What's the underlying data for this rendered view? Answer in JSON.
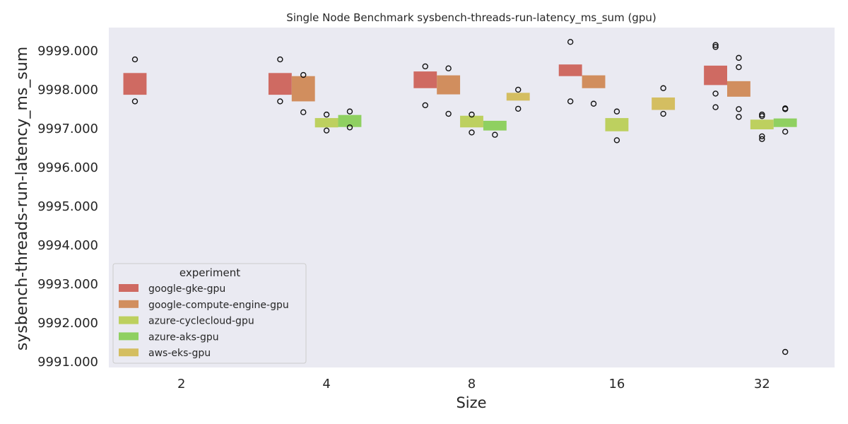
{
  "chart_data": {
    "type": "box",
    "title": "Single Node Benchmark sysbench-threads-run-latency_ms_sum (gpu)",
    "xlabel": "Size",
    "ylabel": "sysbench-threads-run-latency_ms_sum",
    "categories": [
      "2",
      "4",
      "8",
      "16",
      "32"
    ],
    "ylim": [
      9990.85,
      9999.6
    ],
    "yticks": [
      9991,
      9992,
      9993,
      9994,
      9995,
      9996,
      9997,
      9998,
      9999
    ],
    "ytick_labels": [
      "9991.000",
      "9992.000",
      "9993.000",
      "9994.000",
      "9995.000",
      "9996.000",
      "9997.000",
      "9998.000",
      "9999.000"
    ],
    "grid": false,
    "legend": {
      "title": "experiment",
      "position": "lower-left"
    },
    "series": [
      {
        "name": "google-gke-gpu",
        "color": "#cf6a62",
        "boxes": [
          {
            "category": "2",
            "q1": 9997.87,
            "q3": 9998.43,
            "outliers": [
              9998.78,
              9997.7
            ]
          },
          {
            "category": "4",
            "q1": 9997.87,
            "q3": 9998.43,
            "outliers": [
              9998.78,
              9997.7
            ]
          },
          {
            "category": "8",
            "q1": 9998.04,
            "q3": 9998.47,
            "outliers": [
              9998.6,
              9997.6
            ]
          },
          {
            "category": "16",
            "q1": 9998.35,
            "q3": 9998.65,
            "outliers": [
              9999.23,
              9997.7
            ]
          },
          {
            "category": "32",
            "q1": 9998.12,
            "q3": 9998.62,
            "outliers": [
              9999.15,
              9999.1,
              9997.9,
              9997.55
            ]
          }
        ]
      },
      {
        "name": "google-compute-engine-gpu",
        "color": "#d18e5e",
        "boxes": [
          {
            "category": "4",
            "q1": 9997.7,
            "q3": 9998.35,
            "outliers": [
              9998.38,
              9997.42
            ]
          },
          {
            "category": "8",
            "q1": 9997.88,
            "q3": 9998.37,
            "outliers": [
              9998.55,
              9997.38
            ]
          },
          {
            "category": "16",
            "q1": 9998.04,
            "q3": 9998.37,
            "outliers": [
              9997.64
            ]
          },
          {
            "category": "32",
            "q1": 9997.82,
            "q3": 9998.22,
            "outliers": [
              9998.82,
              9998.58,
              9997.5,
              9997.3
            ]
          }
        ]
      },
      {
        "name": "azure-cyclecloud-gpu",
        "color": "#bdd05f",
        "boxes": [
          {
            "category": "4",
            "q1": 9997.03,
            "q3": 9997.27,
            "outliers": [
              9997.36,
              9996.95
            ]
          },
          {
            "category": "8",
            "q1": 9997.03,
            "q3": 9997.33,
            "outliers": [
              9997.36,
              9996.9
            ]
          },
          {
            "category": "16",
            "q1": 9996.93,
            "q3": 9997.27,
            "outliers": [
              9997.44,
              9996.7
            ]
          },
          {
            "category": "32",
            "q1": 9996.98,
            "q3": 9997.23,
            "outliers": [
              9997.36,
              9997.32,
              9996.8,
              9996.73
            ]
          }
        ]
      },
      {
        "name": "azure-aks-gpu",
        "color": "#8fd061",
        "boxes": [
          {
            "category": "4",
            "q1": 9997.04,
            "q3": 9997.35,
            "outliers": [
              9997.44,
              9997.03
            ]
          },
          {
            "category": "8",
            "q1": 9996.95,
            "q3": 9997.2,
            "outliers": [
              9996.84
            ]
          },
          {
            "category": "32",
            "q1": 9997.04,
            "q3": 9997.26,
            "outliers": [
              9997.52,
              9997.5,
              9996.92,
              9991.25
            ]
          }
        ]
      },
      {
        "name": "aws-eks-gpu",
        "color": "#d4be61",
        "boxes": [
          {
            "category": "8",
            "q1": 9997.72,
            "q3": 9997.92,
            "outliers": [
              9998.0,
              9997.51
            ]
          },
          {
            "category": "16",
            "q1": 9997.48,
            "q3": 9997.8,
            "outliers": [
              9998.04,
              9997.38
            ]
          }
        ]
      }
    ]
  }
}
